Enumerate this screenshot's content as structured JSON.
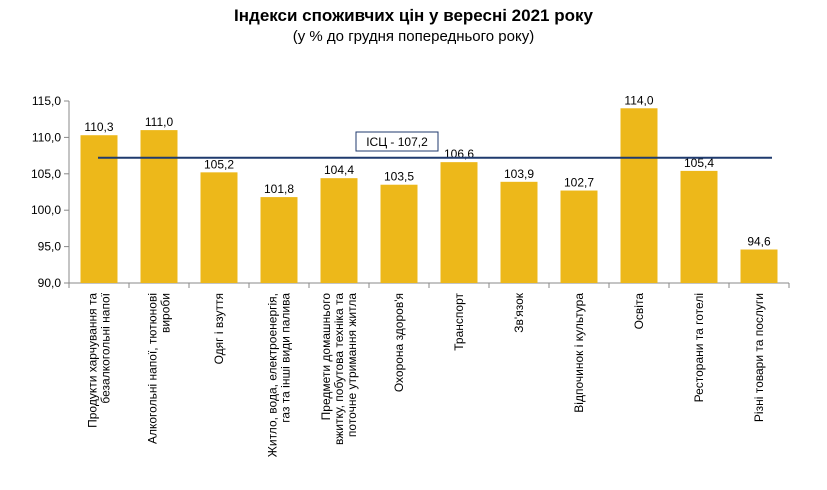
{
  "chart_data": {
    "type": "bar",
    "title": "Індекси споживчих цін у вересні 2021 року",
    "subtitle": "(у % до грудня попереднього року)",
    "categories": [
      [
        "Продукти харчування та",
        "безалкогольні напої"
      ],
      [
        "Алкогольні напої, тютюнові",
        "вироби"
      ],
      [
        "Одяг і взуття"
      ],
      [
        "Житло, вода, електроенергія,",
        "газ та інші види палива"
      ],
      [
        "Предмети домашнього",
        "вжитку, побутова техніка та",
        "поточне утримання житла"
      ],
      [
        "Охорона здоров'я"
      ],
      [
        "Транспорт"
      ],
      [
        "Зв'язок"
      ],
      [
        "Відпочинок і культура"
      ],
      [
        "Освіта"
      ],
      [
        "Ресторани та готелі"
      ],
      [
        "Різні товари та послуги"
      ]
    ],
    "values": [
      110.3,
      111.0,
      105.2,
      101.8,
      104.4,
      103.5,
      106.6,
      103.9,
      102.7,
      114.0,
      105.4,
      94.6
    ],
    "value_labels": [
      "110,3",
      "111,0",
      "105,2",
      "101,8",
      "104,4",
      "103,5",
      "106,6",
      "103,9",
      "102,7",
      "114,0",
      "105,4",
      "94,6"
    ],
    "ylim": [
      90,
      115
    ],
    "yticks": [
      90,
      95,
      100,
      105,
      110,
      115
    ],
    "ytick_labels": [
      "90,0",
      "95,0",
      "100,0",
      "105,0",
      "110,0",
      "115,0"
    ],
    "reference_line": {
      "value": 107.2,
      "label": "ІСЦ - 107,2"
    },
    "colors": {
      "bar": "#EDB81A",
      "reference_line": "#1F3A6E",
      "axis": "#888888"
    },
    "grid": false,
    "legend": "none"
  }
}
